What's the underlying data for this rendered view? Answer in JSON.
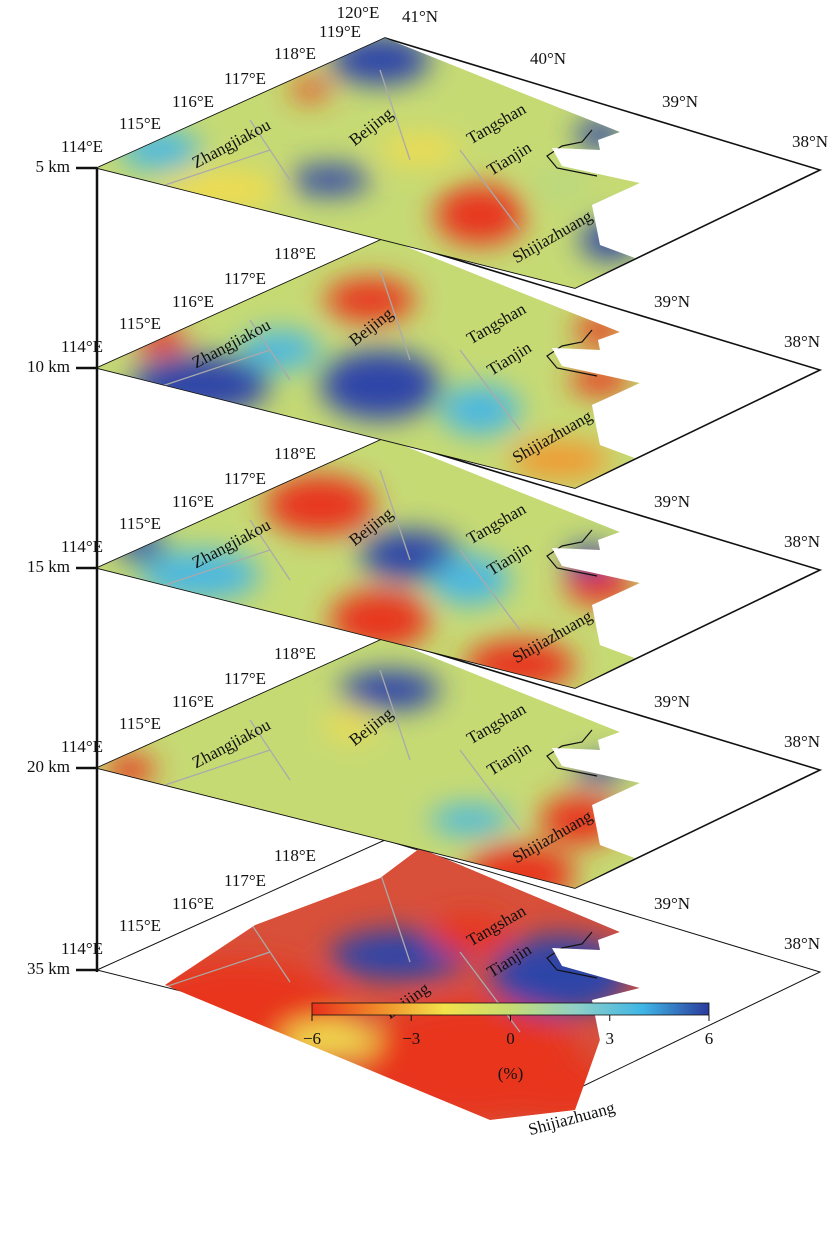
{
  "layers": [
    {
      "depth": "5 km",
      "lon_labels": [
        "114°E",
        "115°E",
        "116°E",
        "117°E",
        "118°E",
        "119°E",
        "120°E"
      ],
      "lat_labels": [
        "41°N",
        "40°N",
        "39°N",
        "38°N"
      ],
      "cities": [
        "Zhangjiakou",
        "Beijing",
        "Tangshan",
        "Tianjin",
        "Shijiazhuang"
      ]
    },
    {
      "depth": "10 km",
      "lon_labels": [
        "114°E",
        "115°E",
        "116°E",
        "117°E",
        "118°E"
      ],
      "lat_labels": [
        "39°N",
        "38°N"
      ],
      "cities": [
        "Zhangjiakou",
        "Beijing",
        "Tangshan",
        "Tianjin",
        "Shijiazhuang"
      ]
    },
    {
      "depth": "15 km",
      "lon_labels": [
        "114°E",
        "115°E",
        "116°E",
        "117°E",
        "118°E"
      ],
      "lat_labels": [
        "39°N",
        "38°N"
      ],
      "cities": [
        "Zhangjiakou",
        "Beijing",
        "Tangshan",
        "Tianjin",
        "Shijiazhuang"
      ]
    },
    {
      "depth": "20 km",
      "lon_labels": [
        "114°E",
        "115°E",
        "116°E",
        "117°E",
        "118°E"
      ],
      "lat_labels": [
        "39°N",
        "38°N"
      ],
      "cities": [
        "Zhangjiakou",
        "Beijing",
        "Tangshan",
        "Tianjin",
        "Shijiazhuang"
      ]
    },
    {
      "depth": "35 km",
      "lon_labels": [
        "114°E",
        "115°E",
        "116°E",
        "117°E",
        "118°E"
      ],
      "lat_labels": [
        "39°N",
        "38°N"
      ],
      "cities": [
        "Tangshan",
        "Tianjin",
        "Beijing",
        "Shijiazhuang"
      ]
    }
  ],
  "colorbar": {
    "range": [
      -6,
      6
    ],
    "ticks": [
      {
        "value": -6,
        "label": "−6"
      },
      {
        "value": -3,
        "label": "−3"
      },
      0,
      3,
      6
    ],
    "label": "(%)",
    "colors": [
      "#e8301c",
      "#f08a2a",
      "#f3e24a",
      "#c6dc72",
      "#8fd0c8",
      "#3fb6e6",
      "#2a3a9c"
    ]
  }
}
